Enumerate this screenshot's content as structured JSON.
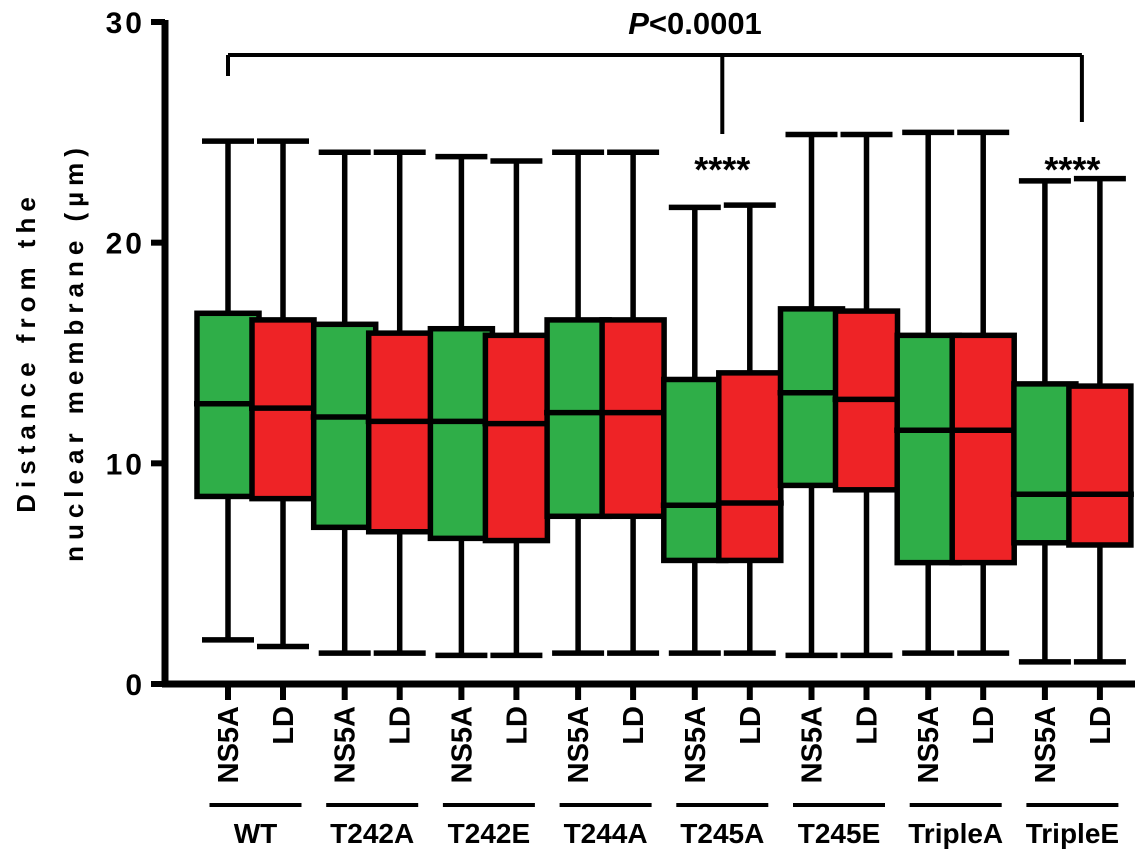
{
  "chart_data": {
    "type": "box",
    "ylabel_line1": "Distance from the",
    "ylabel_line2": "nuclear membrane (µm)",
    "ylim": [
      0,
      30
    ],
    "yticks": [
      "0",
      "10",
      "20",
      "30"
    ],
    "significance": {
      "p_prefix": "P",
      "p_text": "<0.0001",
      "stars": "****"
    },
    "star_groups": [
      "T245A",
      "TripleE"
    ],
    "bracket_groups": [
      "WT",
      "T245A",
      "TripleE"
    ],
    "groups": [
      {
        "label": "WT",
        "boxes": [
          {
            "label": "NS5A",
            "series": "NS5A",
            "min": 2.0,
            "q1": 8.5,
            "median": 12.7,
            "q3": 16.8,
            "max": 24.6
          },
          {
            "label": "LD",
            "series": "LD",
            "min": 1.7,
            "q1": 8.4,
            "median": 12.5,
            "q3": 16.5,
            "max": 24.6
          }
        ]
      },
      {
        "label": "T242A",
        "boxes": [
          {
            "label": "NS5A",
            "series": "NS5A",
            "min": 1.4,
            "q1": 7.1,
            "median": 12.1,
            "q3": 16.3,
            "max": 24.1
          },
          {
            "label": "LD",
            "series": "LD",
            "min": 1.4,
            "q1": 6.9,
            "median": 11.9,
            "q3": 15.9,
            "max": 24.1
          }
        ]
      },
      {
        "label": "T242E",
        "boxes": [
          {
            "label": "NS5A",
            "series": "NS5A",
            "min": 1.3,
            "q1": 6.6,
            "median": 11.9,
            "q3": 16.1,
            "max": 23.9
          },
          {
            "label": "LD",
            "series": "LD",
            "min": 1.3,
            "q1": 6.5,
            "median": 11.8,
            "q3": 15.8,
            "max": 23.7
          }
        ]
      },
      {
        "label": "T244A",
        "boxes": [
          {
            "label": "NS5A",
            "series": "NS5A",
            "min": 1.4,
            "q1": 7.6,
            "median": 12.3,
            "q3": 16.5,
            "max": 24.1
          },
          {
            "label": "LD",
            "series": "LD",
            "min": 1.4,
            "q1": 7.6,
            "median": 12.3,
            "q3": 16.5,
            "max": 24.1
          }
        ]
      },
      {
        "label": "T245A",
        "boxes": [
          {
            "label": "NS5A",
            "series": "NS5A",
            "min": 1.4,
            "q1": 5.6,
            "median": 8.1,
            "q3": 13.8,
            "max": 21.6
          },
          {
            "label": "LD",
            "series": "LD",
            "min": 1.4,
            "q1": 5.6,
            "median": 8.2,
            "q3": 14.1,
            "max": 21.7
          }
        ]
      },
      {
        "label": "T245E",
        "boxes": [
          {
            "label": "NS5A",
            "series": "NS5A",
            "min": 1.3,
            "q1": 9.0,
            "median": 13.2,
            "q3": 17.0,
            "max": 24.9
          },
          {
            "label": "LD",
            "series": "LD",
            "min": 1.3,
            "q1": 8.8,
            "median": 12.9,
            "q3": 16.9,
            "max": 24.9
          }
        ]
      },
      {
        "label": "TripleA",
        "boxes": [
          {
            "label": "NS5A",
            "series": "NS5A",
            "min": 1.4,
            "q1": 5.5,
            "median": 11.5,
            "q3": 15.8,
            "max": 25.0
          },
          {
            "label": "LD",
            "series": "LD",
            "min": 1.4,
            "q1": 5.5,
            "median": 11.5,
            "q3": 15.8,
            "max": 25.0
          }
        ]
      },
      {
        "label": "TripleE",
        "boxes": [
          {
            "label": "NS5A",
            "series": "NS5A",
            "min": 1.0,
            "q1": 6.4,
            "median": 8.6,
            "q3": 13.6,
            "max": 22.8
          },
          {
            "label": "LD",
            "series": "LD",
            "min": 1.0,
            "q1": 6.3,
            "median": 8.6,
            "q3": 13.5,
            "max": 22.9
          }
        ]
      }
    ],
    "colors": {
      "NS5A": "#2fae48",
      "LD": "#ee2326",
      "stroke": "#000000"
    }
  }
}
